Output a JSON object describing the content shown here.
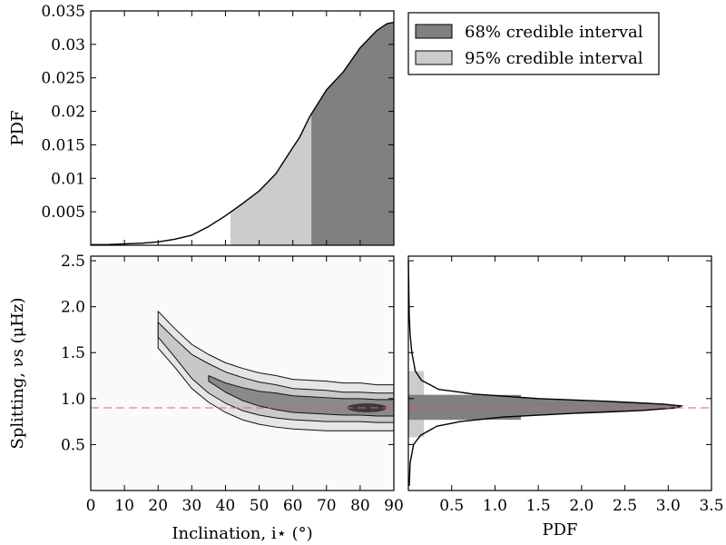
{
  "colors": {
    "ci68": "#808080",
    "ci95": "#cccccc",
    "median_line": "#e06060",
    "curve": "#000000"
  },
  "legend": {
    "ci68_label": "68% credible interval",
    "ci95_label": "95% credible interval"
  },
  "chart_data": [
    {
      "type": "area",
      "panel": "inclination-marginal",
      "ylabel": "PDF",
      "xlim": [
        0,
        90
      ],
      "ylim": [
        0,
        0.035
      ],
      "y_tick_labels": [
        "0.005",
        "0.01",
        "0.015",
        "0.02",
        "0.025",
        "0.03",
        "0.035"
      ],
      "y_ticks": [
        0.005,
        0.01,
        0.015,
        0.02,
        0.025,
        0.03,
        0.035
      ],
      "x": [
        0,
        5,
        10,
        15,
        20,
        25,
        30,
        35,
        40,
        45,
        50,
        55,
        60,
        62,
        65,
        70,
        75,
        80,
        85,
        88,
        90
      ],
      "y": [
        0.0001,
        0.0001,
        0.0002,
        0.0003,
        0.0005,
        0.0009,
        0.0015,
        0.0028,
        0.0044,
        0.0062,
        0.0081,
        0.0107,
        0.0146,
        0.0161,
        0.0192,
        0.0232,
        0.0259,
        0.0295,
        0.0321,
        0.0331,
        0.0333
      ],
      "ci95_range": [
        41.5,
        65.5
      ],
      "ci68_range": [
        65.5,
        90
      ]
    },
    {
      "type": "heatmap",
      "panel": "joint-posterior",
      "xlabel": "Inclination, i⋆ (°)",
      "ylabel": "Splitting, νs (μHz)",
      "xlim": [
        0,
        90
      ],
      "ylim": [
        0,
        2.55
      ],
      "x_tick_labels": [
        "0",
        "10",
        "20",
        "30",
        "40",
        "50",
        "60",
        "70",
        "80",
        "90"
      ],
      "x_ticks": [
        0,
        10,
        20,
        30,
        40,
        50,
        60,
        70,
        80,
        90
      ],
      "y_tick_labels": [
        "0.5",
        "1.0",
        "1.5",
        "2.0",
        "2.5"
      ],
      "y_ticks": [
        0.5,
        1.0,
        1.5,
        2.0,
        2.5
      ],
      "reference_value": 0.9,
      "ridge": {
        "x": [
          20,
          25,
          30,
          35,
          40,
          45,
          50,
          55,
          60,
          65,
          70,
          75,
          80,
          85,
          90
        ],
        "y": [
          1.75,
          1.55,
          1.35,
          1.22,
          1.12,
          1.05,
          1.0,
          0.97,
          0.94,
          0.93,
          0.92,
          0.91,
          0.91,
          0.9,
          0.9
        ]
      },
      "contour_widths": [
        {
          "level": "outer",
          "half_width": [
            0.2,
            0.21,
            0.24,
            0.26,
            0.27,
            0.28,
            0.28,
            0.28,
            0.27,
            0.27,
            0.27,
            0.26,
            0.26,
            0.25,
            0.25
          ]
        },
        {
          "level": "middle",
          "half_width": [
            0.08,
            0.1,
            0.13,
            0.16,
            0.17,
            0.18,
            0.18,
            0.18,
            0.17,
            0.17,
            0.17,
            0.16,
            0.16,
            0.16,
            0.16
          ]
        },
        {
          "level": "inner",
          "half_width": [
            0,
            0,
            0,
            0.03,
            0.05,
            0.07,
            0.08,
            0.09,
            0.09,
            0.09,
            0.09,
            0.09,
            0.09,
            0.09,
            0.09
          ]
        }
      ]
    },
    {
      "type": "area",
      "panel": "splitting-marginal",
      "orientation": "horizontal",
      "xlabel": "PDF",
      "xlim": [
        0,
        3.5
      ],
      "ylim": [
        0,
        2.55
      ],
      "x_tick_labels": [
        "0.5",
        "1.0",
        "1.5",
        "2.0",
        "2.5",
        "3.0",
        "3.5"
      ],
      "x_ticks": [
        0.5,
        1.0,
        1.5,
        2.0,
        2.5,
        3.0,
        3.5
      ],
      "y": [
        0.05,
        0.3,
        0.5,
        0.6,
        0.7,
        0.75,
        0.8,
        0.84,
        0.87,
        0.9,
        0.92,
        0.94,
        0.97,
        1.0,
        1.05,
        1.1,
        1.2,
        1.3,
        1.5,
        1.7,
        1.9,
        2.5
      ],
      "pdf": [
        0.01,
        0.02,
        0.06,
        0.14,
        0.33,
        0.6,
        1.1,
        1.9,
        2.7,
        3.1,
        3.15,
        2.95,
        2.3,
        1.5,
        0.75,
        0.35,
        0.15,
        0.08,
        0.04,
        0.02,
        0.01,
        0.0
      ],
      "ci95_range": [
        0.58,
        1.3
      ],
      "ci68_range": [
        0.77,
        1.04
      ],
      "ci95_bar_pdf": 0.18,
      "ci68_bar_pdf": 1.3,
      "reference_value": 0.9
    }
  ]
}
